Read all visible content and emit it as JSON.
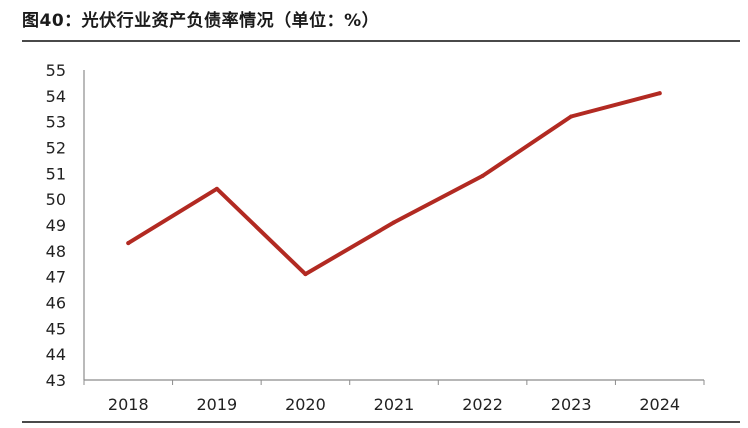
{
  "header": {
    "title": "图40：光伏行业资产负债率情况（单位：%）"
  },
  "chart_data": {
    "type": "line",
    "title": "图40：光伏行业资产负债率情况（单位：%）",
    "xlabel": "",
    "ylabel": "",
    "categories": [
      "2018",
      "2019",
      "2020",
      "2021",
      "2022",
      "2023",
      "2024"
    ],
    "series": [
      {
        "values": [
          48.3,
          50.4,
          47.1,
          49.1,
          50.9,
          53.2,
          54.1
        ],
        "color": "#b22a22"
      }
    ],
    "ylim": [
      43,
      55
    ],
    "yticks": [
      43,
      44,
      45,
      46,
      47,
      48,
      49,
      50,
      51,
      52,
      53,
      54,
      55
    ],
    "grid": false,
    "legend": "none",
    "colors": {
      "line": "#b22a22",
      "axis": "#8c8c8c",
      "rule": "#4a4a4a"
    }
  }
}
